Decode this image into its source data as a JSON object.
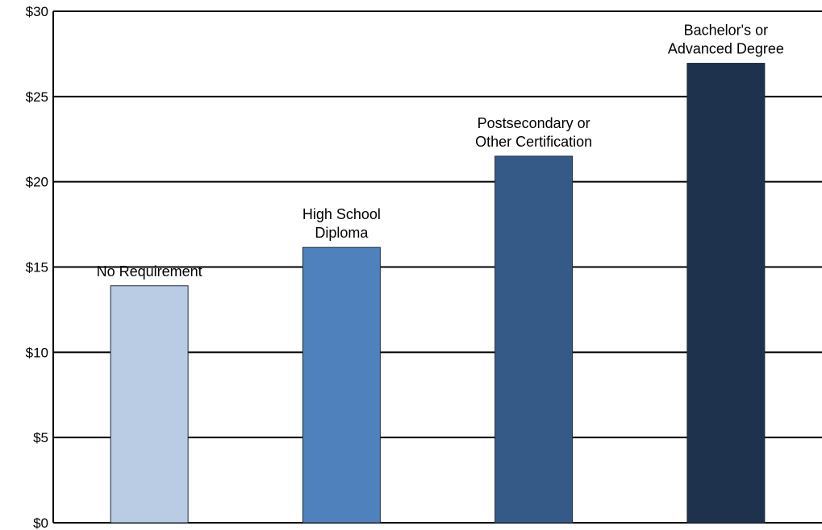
{
  "chart_data": {
    "type": "bar",
    "categories": [
      [
        "No Requirement"
      ],
      [
        "High School",
        "Diploma"
      ],
      [
        "Postsecondary or",
        "Other Certification"
      ],
      [
        "Bachelor's or",
        "Advanced Degree"
      ]
    ],
    "values": [
      13.9,
      16.15,
      21.5,
      26.95
    ],
    "colors": [
      "#b9cce4",
      "#4f81bd",
      "#355a88",
      "#1f324d"
    ],
    "ylim": [
      0,
      30
    ],
    "yticks": [
      0,
      5,
      10,
      15,
      20,
      25,
      30
    ],
    "ytick_labels": [
      "$0",
      "$5",
      "$10",
      "$15",
      "$20",
      "$25",
      "$30"
    ],
    "grid": true,
    "legend": "none",
    "title": "",
    "xlabel": "",
    "ylabel": ""
  }
}
